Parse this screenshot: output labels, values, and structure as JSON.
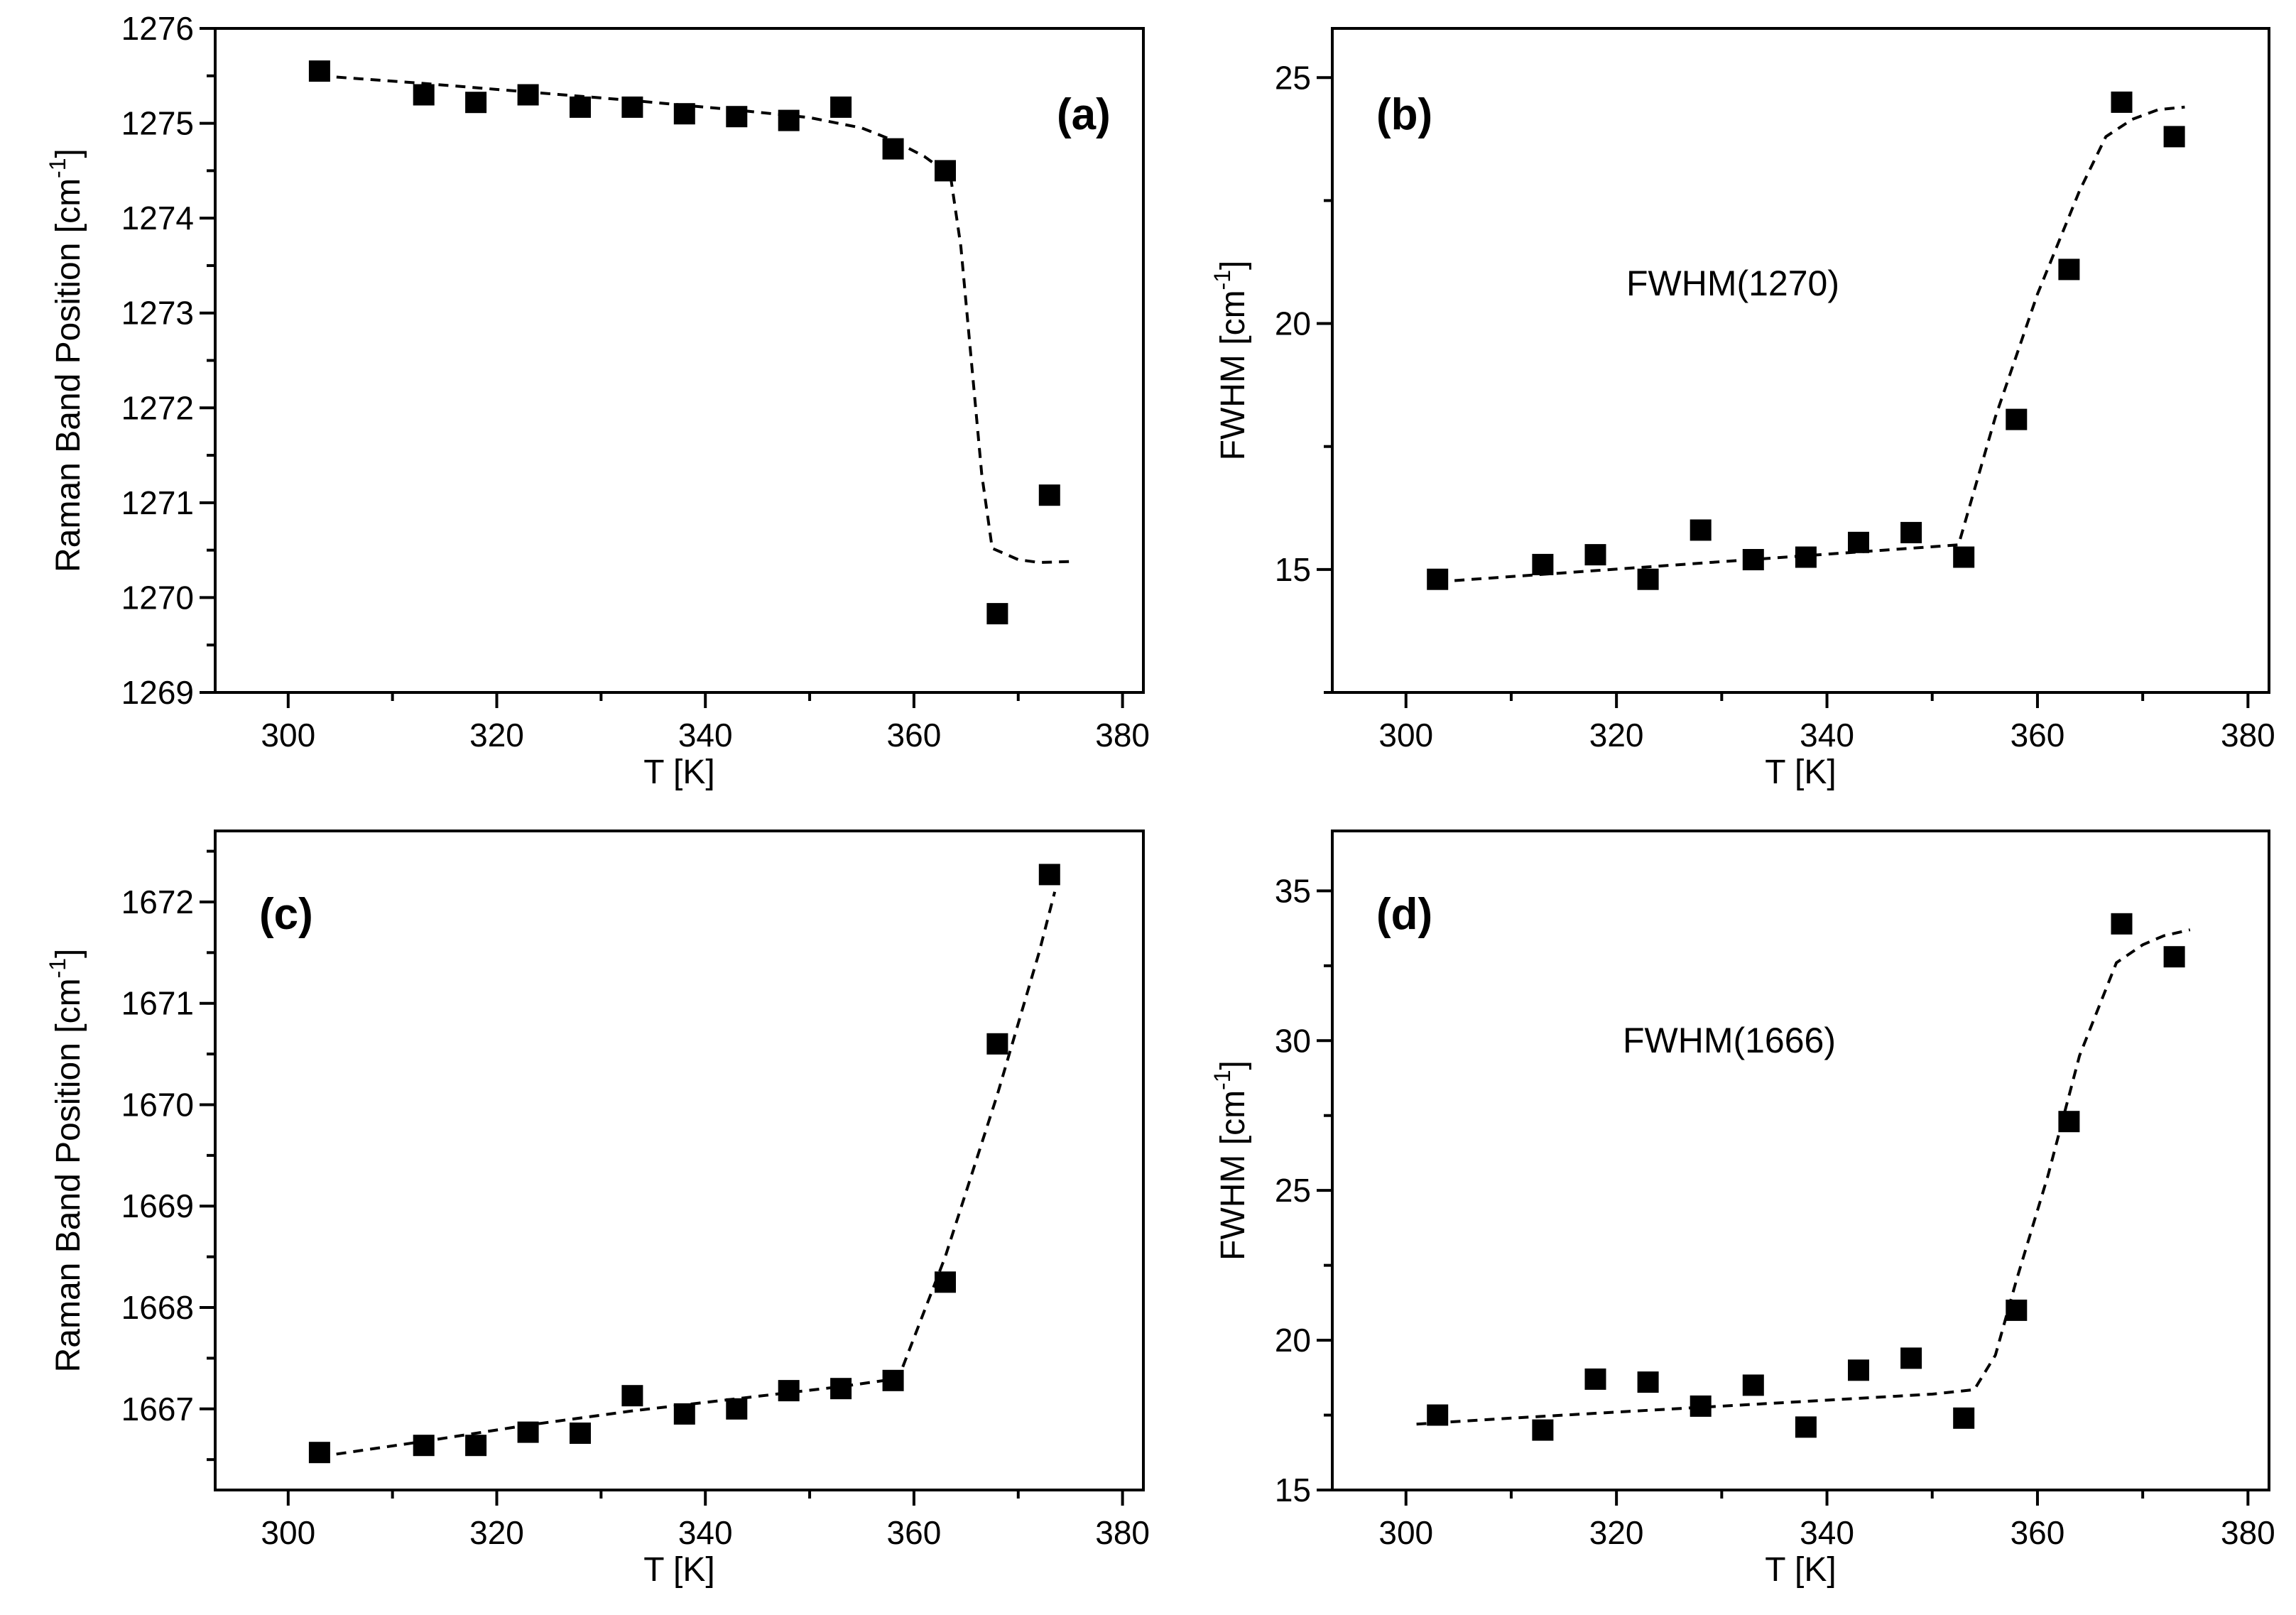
{
  "chart_data": [
    {
      "panel": "(a)",
      "type": "scatter",
      "title": "",
      "annotation": "",
      "xlabel": "T [K]",
      "ylabel": "Raman Band Position [cm-1]",
      "ylabel_main": "Raman Band Position [cm",
      "ylabel_sup": "-1",
      "ylabel_close": "]",
      "xlim": [
        293,
        382
      ],
      "ylim": [
        1269,
        1276
      ],
      "xticks": [
        300,
        320,
        340,
        360,
        380
      ],
      "yticks": [
        1269,
        1270,
        1271,
        1272,
        1273,
        1274,
        1275,
        1276
      ],
      "x_tick_labels": [
        "300",
        "320",
        "340",
        "360",
        "380"
      ],
      "y_tick_labels": [
        "1269",
        "1270",
        "1271",
        "1272",
        "1273",
        "1274",
        "1275",
        "1276"
      ],
      "y_minor_step": 0.5,
      "x_minor_step": 10,
      "series": [
        {
          "name": "data",
          "x": [
            303,
            313,
            318,
            323,
            328,
            333,
            338,
            343,
            348,
            353,
            358,
            363,
            368,
            373
          ],
          "y": [
            1275.55,
            1275.3,
            1275.22,
            1275.3,
            1275.17,
            1275.17,
            1275.1,
            1275.07,
            1275.03,
            1275.17,
            1274.73,
            1274.5,
            1269.83,
            1271.08
          ]
        },
        {
          "name": "fit",
          "style": "dashed",
          "x": [
            303,
            313,
            323,
            333,
            343,
            350,
            355,
            358,
            361,
            363.5,
            364.5,
            365.5,
            366.5,
            367.5,
            370,
            372,
            375
          ],
          "y": [
            1275.5,
            1275.42,
            1275.33,
            1275.24,
            1275.14,
            1275.06,
            1274.95,
            1274.82,
            1274.65,
            1274.45,
            1273.7,
            1272.5,
            1271.3,
            1270.52,
            1270.4,
            1270.37,
            1270.38
          ]
        }
      ]
    },
    {
      "panel": "(b)",
      "type": "scatter",
      "title": "",
      "annotation": "FWHM(1270)",
      "xlabel": "T [K]",
      "ylabel": "FWHM [cm-1]",
      "ylabel_main": "FWHM [cm",
      "ylabel_sup": "-1",
      "ylabel_close": "]",
      "xlim": [
        293,
        382
      ],
      "ylim": [
        12.5,
        26
      ],
      "xticks": [
        300,
        320,
        340,
        360,
        380
      ],
      "yticks": [
        15,
        20,
        25
      ],
      "x_tick_labels": [
        "300",
        "320",
        "340",
        "360",
        "380"
      ],
      "y_tick_labels": [
        "15",
        "20",
        "25"
      ],
      "y_minor_step": 2.5,
      "x_minor_step": 10,
      "series": [
        {
          "name": "data",
          "x": [
            303,
            313,
            318,
            323,
            328,
            333,
            338,
            343,
            348,
            353,
            358,
            363,
            368,
            373
          ],
          "y": [
            14.8,
            15.1,
            15.3,
            14.8,
            15.8,
            15.2,
            15.25,
            15.55,
            15.75,
            15.25,
            18.05,
            21.1,
            24.5,
            23.8
          ]
        },
        {
          "name": "fit",
          "style": "dashed",
          "x": [
            303,
            352.5,
            356,
            360,
            364,
            366.5,
            369,
            371.5,
            374
          ],
          "y": [
            14.75,
            15.5,
            18.1,
            20.6,
            22.7,
            23.8,
            24.15,
            24.35,
            24.4
          ]
        }
      ]
    },
    {
      "panel": "(c)",
      "type": "scatter",
      "title": "",
      "annotation": "",
      "xlabel": "T [K]",
      "ylabel": "Raman Band Position [cm-1]",
      "ylabel_main": "Raman Band Position [cm",
      "ylabel_sup": "-1",
      "ylabel_close": "]",
      "xlim": [
        293,
        382
      ],
      "ylim": [
        1666.2,
        1672.7
      ],
      "xticks": [
        300,
        320,
        340,
        360,
        380
      ],
      "yticks": [
        1667,
        1668,
        1669,
        1670,
        1671,
        1672
      ],
      "x_tick_labels": [
        "300",
        "320",
        "340",
        "360",
        "380"
      ],
      "y_tick_labels": [
        "1667",
        "1668",
        "1669",
        "1670",
        "1671",
        "1672"
      ],
      "y_minor_step": 0.5,
      "x_minor_step": 10,
      "series": [
        {
          "name": "data",
          "x": [
            303,
            313,
            318,
            323,
            328,
            333,
            338,
            343,
            348,
            353,
            358,
            363,
            368,
            373
          ],
          "y": [
            1666.57,
            1666.64,
            1666.64,
            1666.77,
            1666.76,
            1667.13,
            1666.95,
            1667.0,
            1667.18,
            1667.2,
            1667.28,
            1668.25,
            1670.6,
            1672.27
          ]
        },
        {
          "name": "fit",
          "style": "dashed",
          "x": [
            303,
            313,
            323,
            333,
            343,
            353,
            358.5,
            363,
            368,
            372,
            373.5
          ],
          "y": [
            1666.53,
            1666.68,
            1666.84,
            1666.98,
            1667.1,
            1667.22,
            1667.3,
            1668.5,
            1670.1,
            1671.5,
            1672.1
          ]
        }
      ]
    },
    {
      "panel": "(d)",
      "type": "scatter",
      "title": "",
      "annotation": "FWHM(1666)",
      "xlabel": "T [K]",
      "ylabel": "FWHM [cm-1]",
      "ylabel_main": "FWHM [cm",
      "ylabel_sup": "-1",
      "ylabel_close": "]",
      "xlim": [
        293,
        382
      ],
      "ylim": [
        15,
        37
      ],
      "xticks": [
        300,
        320,
        340,
        360,
        380
      ],
      "yticks": [
        15,
        20,
        25,
        30,
        35
      ],
      "x_tick_labels": [
        "300",
        "320",
        "340",
        "360",
        "380"
      ],
      "y_tick_labels": [
        "15",
        "20",
        "25",
        "30",
        "35"
      ],
      "y_minor_step": 2.5,
      "x_minor_step": 10,
      "series": [
        {
          "name": "data",
          "x": [
            303,
            313,
            318,
            323,
            328,
            333,
            338,
            343,
            348,
            353,
            358,
            363,
            368,
            373
          ],
          "y": [
            17.5,
            17.0,
            18.7,
            18.6,
            17.8,
            18.5,
            17.1,
            19.0,
            19.4,
            17.4,
            21.0,
            27.3,
            33.9,
            32.8
          ]
        },
        {
          "name": "fit",
          "style": "dashed",
          "x": [
            301,
            310,
            320,
            330,
            340,
            350,
            354,
            356,
            358,
            361,
            364,
            367.5,
            370,
            372,
            374.5
          ],
          "y": [
            17.2,
            17.4,
            17.6,
            17.8,
            18.0,
            18.2,
            18.35,
            19.5,
            22.0,
            25.5,
            29.5,
            32.6,
            33.2,
            33.5,
            33.7
          ]
        }
      ]
    }
  ]
}
